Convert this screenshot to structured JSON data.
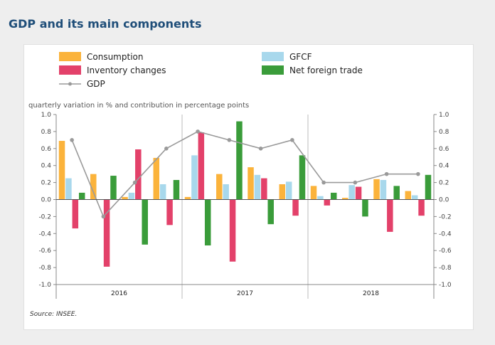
{
  "title": "GDP and its main components",
  "subtitle": "quarterly variation in % and contribution in percentage points",
  "source": "Source: INSEE.",
  "chart_data": {
    "type": "bar",
    "years": [
      "2016",
      "2017",
      "2018"
    ],
    "quarters": [
      "2016 Q1",
      "2016 Q2",
      "2016 Q3",
      "2016 Q4",
      "2017 Q1",
      "2017 Q2",
      "2017 Q3",
      "2017 Q4",
      "2018 Q1",
      "2018 Q2",
      "2018 Q3",
      "2018 Q4"
    ],
    "ylim": [
      -1.0,
      1.0
    ],
    "yticks": [
      "1.0",
      "0.8",
      "0.6",
      "0.4",
      "0.2",
      "0.0",
      "-0.2",
      "-0.4",
      "-0.6",
      "-0.8",
      "-1.0"
    ],
    "ytick_values": [
      1.0,
      0.8,
      0.6,
      0.4,
      0.2,
      0.0,
      -0.2,
      -0.4,
      -0.6,
      -0.8,
      -1.0
    ],
    "series": [
      {
        "name": "Consumption",
        "color": "#fbb33b",
        "values": [
          0.69,
          0.3,
          0.03,
          0.49,
          0.03,
          0.3,
          0.38,
          0.18,
          0.16,
          0.02,
          0.24,
          0.1
        ]
      },
      {
        "name": "GFCF",
        "color": "#a8d8ec",
        "values": [
          0.25,
          0.0,
          0.08,
          0.18,
          0.52,
          0.18,
          0.29,
          0.21,
          0.04,
          0.17,
          0.23,
          0.05
        ]
      },
      {
        "name": "Inventory changes",
        "color": "#e3416a",
        "values": [
          -0.34,
          -0.79,
          0.59,
          -0.3,
          0.79,
          -0.73,
          0.25,
          -0.19,
          -0.07,
          0.15,
          -0.38,
          -0.19
        ]
      },
      {
        "name": "Net foreign trade",
        "color": "#3a9c3a",
        "values": [
          0.08,
          0.28,
          -0.53,
          0.23,
          -0.54,
          0.92,
          -0.29,
          0.52,
          0.08,
          -0.2,
          0.16,
          0.29
        ]
      }
    ],
    "line": {
      "name": "GDP",
      "color": "#9a9a9a",
      "values": [
        0.7,
        -0.2,
        0.2,
        0.6,
        0.8,
        0.7,
        0.6,
        0.7,
        0.2,
        0.2,
        0.3,
        0.3
      ]
    }
  }
}
